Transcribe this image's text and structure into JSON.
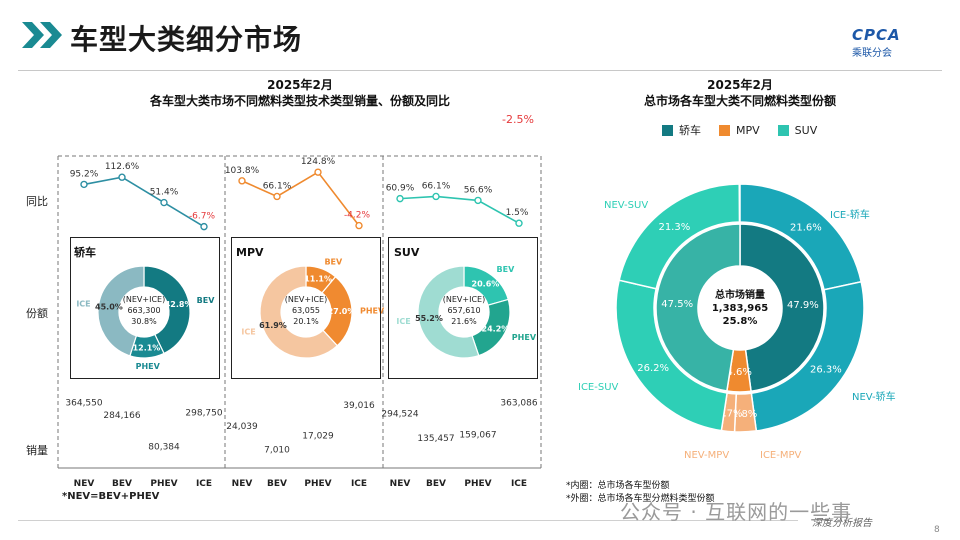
{
  "header": {
    "title": "车型大类细分市场",
    "logo_text": "CPCA",
    "logo_sub": "乘联分会"
  },
  "left_chart": {
    "title_line1": "2025年2月",
    "title_line2": "各车型大类市场不同燃料类型技术类型销量、份额及同比",
    "row_labels": {
      "yoy": "同比",
      "share": "份额",
      "sales": "销量"
    },
    "top_note": "-2.5%",
    "footnote": "*NEV=BEV+PHEV"
  },
  "right_chart": {
    "title_line1": "2025年2月",
    "title_line2": "总市场各车型大类不同燃料类型份额",
    "legend": [
      {
        "label": "轿车",
        "color": "#137a82"
      },
      {
        "label": "MPV",
        "color": "#ef8a2f"
      },
      {
        "label": "SUV",
        "color": "#2ec4b0"
      }
    ],
    "footnote1": "*内圈：总市场各车型份额",
    "footnote2": "*外圈：总市场各车型分燃料类型份额"
  },
  "footer": {
    "watermark": "公众号 · 互联网的一些事",
    "brand": "深度分析报告",
    "page": "8"
  },
  "chart_data": [
    {
      "type": "line",
      "segment": "轿车",
      "categories": [
        "NEV",
        "BEV",
        "PHEV",
        "ICE"
      ],
      "values": [
        95.2,
        112.6,
        51.4,
        -6.7
      ],
      "labels": [
        "95.2%",
        "112.6%",
        "51.4%",
        "-6.7%"
      ],
      "color": "#2e8fa3"
    },
    {
      "type": "line",
      "segment": "MPV",
      "categories": [
        "NEV",
        "BEV",
        "PHEV",
        "ICE"
      ],
      "values": [
        103.8,
        66.1,
        124.8,
        -4.2
      ],
      "labels": [
        "103.8%",
        "66.1%",
        "124.8%",
        "-4.2%"
      ],
      "color": "#ef8a2f"
    },
    {
      "type": "line",
      "segment": "SUV",
      "categories": [
        "NEV",
        "BEV",
        "PHEV",
        "ICE"
      ],
      "values": [
        60.9,
        66.1,
        56.6,
        1.5
      ],
      "labels": [
        "60.9%",
        "66.1%",
        "56.6%",
        "1.5%"
      ],
      "color": "#2ec4b0"
    },
    {
      "type": "pie",
      "segment": "轿车",
      "title": "轿车",
      "center_lines": [
        "(NEV+ICE)",
        "663,300",
        "30.8%"
      ],
      "slices": [
        {
          "name": "BEV",
          "value": 42.8,
          "label": "42.8%",
          "color": "#137a82"
        },
        {
          "name": "PHEV",
          "value": 12.1,
          "label": "12.1%",
          "color": "#1a8a92"
        },
        {
          "name": "ICE",
          "value": 45.0,
          "label": "45.0%",
          "color": "#8bb9c2"
        }
      ]
    },
    {
      "type": "pie",
      "segment": "MPV",
      "title": "MPV",
      "center_lines": [
        "(NEV+ICE)",
        "63,055",
        "20.1%"
      ],
      "slices": [
        {
          "name": "BEV",
          "value": 11.1,
          "label": "11.1%",
          "color": "#ef8a2f"
        },
        {
          "name": "PHEV",
          "value": 27.0,
          "label": "27.0%",
          "color": "#f08a30"
        },
        {
          "name": "ICE",
          "value": 61.9,
          "label": "61.9%",
          "color": "#f5c6a0"
        }
      ]
    },
    {
      "type": "pie",
      "segment": "SUV",
      "title": "SUV",
      "center_lines": [
        "(NEV+ICE)",
        "657,610",
        "21.6%"
      ],
      "slices": [
        {
          "name": "BEV",
          "value": 20.6,
          "label": "20.6%",
          "color": "#2ec4b0"
        },
        {
          "name": "PHEV",
          "value": 24.2,
          "label": "24.2%",
          "color": "#22a58f"
        },
        {
          "name": "ICE",
          "value": 55.2,
          "label": "55.2%",
          "color": "#9fdcd2"
        }
      ]
    },
    {
      "type": "bar",
      "segment": "轿车",
      "categories": [
        "NEV",
        "BEV",
        "PHEV",
        "ICE"
      ],
      "values": [
        364550,
        284166,
        80384,
        298750
      ],
      "labels": [
        "364,550",
        "284,166",
        "80,384",
        "298,750"
      ]
    },
    {
      "type": "bar",
      "segment": "MPV",
      "categories": [
        "NEV",
        "BEV",
        "PHEV",
        "ICE"
      ],
      "values": [
        24039,
        7010,
        17029,
        39016
      ],
      "labels": [
        "24,039",
        "7,010",
        "17,029",
        "39,016"
      ]
    },
    {
      "type": "bar",
      "segment": "SUV",
      "categories": [
        "NEV",
        "BEV",
        "PHEV",
        "ICE"
      ],
      "values": [
        294524,
        135457,
        159067,
        363086
      ],
      "labels": [
        "294,524",
        "135,457",
        "159,067",
        "363,086"
      ]
    },
    {
      "type": "pie",
      "title": "总市场各车型大类不同燃料类型份额",
      "center_lines": [
        "总市场销量",
        "1,383,965",
        "25.8%"
      ],
      "inner": [
        {
          "name": "轿车",
          "value": 47.9,
          "label": "47.9%",
          "color": "#137a82"
        },
        {
          "name": "MPV",
          "value": 4.6,
          "label": "4.6%",
          "color": "#ef8a2f"
        },
        {
          "name": "SUV",
          "value": 47.5,
          "label": "47.5%",
          "color": "#37b3a6"
        }
      ],
      "outer": [
        {
          "name": "ICE-轿车",
          "value": 21.6,
          "label": "21.6%",
          "color": "#1aa7b8"
        },
        {
          "name": "NEV-轿车",
          "value": 26.3,
          "label": "26.3%",
          "color": "#1aa7b8"
        },
        {
          "name": "ICE-MPV",
          "value": 2.8,
          "label": "2.8%",
          "color": "#f5b07a"
        },
        {
          "name": "NEV-MPV",
          "value": 1.7,
          "label": "1.7%",
          "color": "#f5b07a"
        },
        {
          "name": "ICE-SUV",
          "value": 26.2,
          "label": "26.2%",
          "color": "#2ecfb6"
        },
        {
          "name": "NEV-SUV",
          "value": 21.3,
          "label": "21.3%",
          "color": "#2ecfb6"
        }
      ]
    }
  ]
}
